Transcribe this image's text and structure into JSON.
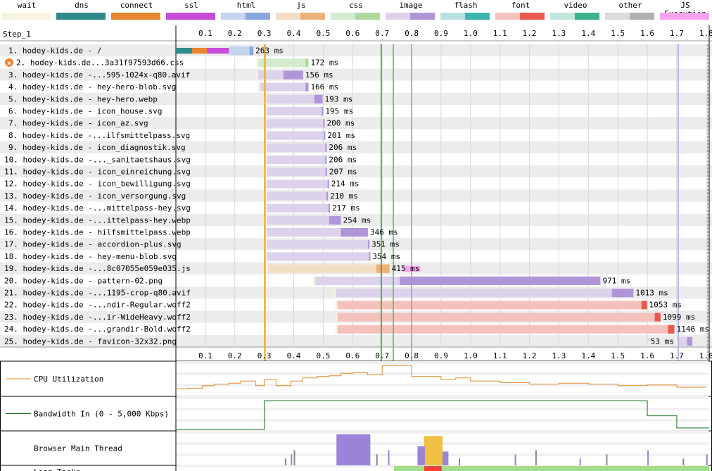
{
  "legend": [
    {
      "name": "wait",
      "c1": "#f7f4e2",
      "c2": "#f7f4e2"
    },
    {
      "name": "dns",
      "c1": "#2f8a8a",
      "c2": "#2f8a8a"
    },
    {
      "name": "connect",
      "c1": "#e9852f",
      "c2": "#e9852f"
    },
    {
      "name": "ssl",
      "c1": "#c94bd9",
      "c2": "#c94bd9"
    },
    {
      "name": "html",
      "c1": "#c4d5ef",
      "c2": "#86a7e0"
    },
    {
      "name": "js",
      "c1": "#f4dfc6",
      "c2": "#ecb277"
    },
    {
      "name": "css",
      "c1": "#d5ebcd",
      "c2": "#b0d9a0"
    },
    {
      "name": "image",
      "c1": "#ddd2ec",
      "c2": "#b096d9"
    },
    {
      "name": "flash",
      "c1": "#b9e1e1",
      "c2": "#3cb4b4"
    },
    {
      "name": "font",
      "c1": "#f4c2bd",
      "c2": "#eb5a4f"
    },
    {
      "name": "video",
      "c1": "#bfe7da",
      "c2": "#3cb28f"
    },
    {
      "name": "other",
      "c1": "#dcdcdc",
      "c2": "#b0b0b0"
    },
    {
      "name": "JS Execution",
      "c1": "#f7a3ef",
      "c2": "#f7a3ef"
    }
  ],
  "step_label": "Step_1",
  "tick_labels": [
    "0.1",
    "0.2",
    "0.3",
    "0.4",
    "0.5",
    "0.6",
    "0.7",
    "0.8",
    "0.9",
    "1.0",
    "1.1",
    "1.2",
    "1.3",
    "1.4",
    "1.5",
    "1.6",
    "1.7",
    "1.8"
  ],
  "chart_data": {
    "type": "waterfall",
    "x_unit": "seconds",
    "x_range": [
      0,
      1.81
    ],
    "requests": [
      {
        "label": "1. hodey-kids.de - /",
        "type": "html",
        "start": 0.0,
        "end": 0.263,
        "duration": "263 ms",
        "phases": {
          "dns": [
            0.0,
            0.055
          ],
          "connect": [
            0.055,
            0.105
          ],
          "ssl": [
            0.105,
            0.18
          ],
          "ttfb": [
            0.18,
            0.25
          ]
        }
      },
      {
        "label": "2. hodey-kids.de...3a31f97593d66.css",
        "type": "css",
        "start": 0.278,
        "end": 0.45,
        "duration": "172 ms",
        "warn": true,
        "ttfb": [
          0.278,
          0.44
        ]
      },
      {
        "label": "3. hodey-kids.de -...595-1024x-q80.avif",
        "type": "image",
        "start": 0.276,
        "end": 0.432,
        "duration": "156 ms",
        "ttfb": [
          0.276,
          0.365
        ]
      },
      {
        "label": "4. hodey-kids.de - hey-hero-blob.svg",
        "type": "image",
        "start": 0.284,
        "end": 0.45,
        "duration": "166 ms",
        "ttfb": [
          0.284,
          0.44
        ]
      },
      {
        "label": "5. hodey-kids.de - hey-hero.webp",
        "type": "image",
        "start": 0.305,
        "end": 0.498,
        "duration": "193 ms",
        "ttfb": [
          0.305,
          0.47
        ]
      },
      {
        "label": "6. hodey-kids.de - icon_house.svg",
        "type": "image",
        "start": 0.305,
        "end": 0.5,
        "duration": "195 ms",
        "ttfb": [
          0.305,
          0.495
        ]
      },
      {
        "label": "7. hodey-kids.de - icon_az.svg",
        "type": "image",
        "start": 0.305,
        "end": 0.505,
        "duration": "200 ms",
        "ttfb": [
          0.305,
          0.5
        ]
      },
      {
        "label": "8. hodey-kids.de -...ilfsmittelpass.svg",
        "type": "image",
        "start": 0.306,
        "end": 0.507,
        "duration": "201 ms",
        "ttfb": [
          0.306,
          0.502
        ]
      },
      {
        "label": "9. hodey-kids.de - icon_diagnostik.svg",
        "type": "image",
        "start": 0.306,
        "end": 0.512,
        "duration": "206 ms",
        "ttfb": [
          0.306,
          0.507
        ]
      },
      {
        "label": "10. hodey-kids.de -..._sanitaetshaus.svg",
        "type": "image",
        "start": 0.306,
        "end": 0.512,
        "duration": "206 ms",
        "ttfb": [
          0.306,
          0.507
        ]
      },
      {
        "label": "11. hodey-kids.de - icon_einreichung.svg",
        "type": "image",
        "start": 0.306,
        "end": 0.513,
        "duration": "207 ms",
        "ttfb": [
          0.306,
          0.508
        ]
      },
      {
        "label": "12. hodey-kids.de - icon_bewilligung.svg",
        "type": "image",
        "start": 0.306,
        "end": 0.52,
        "duration": "214 ms",
        "ttfb": [
          0.306,
          0.515
        ]
      },
      {
        "label": "13. hodey-kids.de - icon_versorgung.svg",
        "type": "image",
        "start": 0.306,
        "end": 0.516,
        "duration": "210 ms",
        "ttfb": [
          0.306,
          0.511
        ]
      },
      {
        "label": "14. hodey-kids.de -...mittelpass-hey.svg",
        "type": "image",
        "start": 0.306,
        "end": 0.523,
        "duration": "217 ms",
        "ttfb": [
          0.306,
          0.518
        ]
      },
      {
        "label": "15. hodey-kids.de -...ittelpass-hey.webp",
        "type": "image",
        "start": 0.306,
        "end": 0.56,
        "duration": "254 ms",
        "ttfb": [
          0.306,
          0.52
        ]
      },
      {
        "label": "16. hodey-kids.de - hilfsmittelpass.webp",
        "type": "image",
        "start": 0.306,
        "end": 0.652,
        "duration": "346 ms",
        "ttfb": [
          0.306,
          0.56
        ]
      },
      {
        "label": "17. hodey-kids.de - accordion-plus.svg",
        "type": "image",
        "start": 0.306,
        "end": 0.657,
        "duration": "351 ms",
        "ttfb": [
          0.306,
          0.652
        ]
      },
      {
        "label": "18. hodey-kids.de - hey-menu-blob.svg",
        "type": "image",
        "start": 0.306,
        "end": 0.66,
        "duration": "354 ms",
        "ttfb": [
          0.306,
          0.655
        ]
      },
      {
        "label": "19. hodey-kids.de -...8c07055e059e035.js",
        "type": "js",
        "start": 0.31,
        "end": 0.725,
        "duration": "415 ms",
        "ttfb": [
          0.31,
          0.68
        ],
        "js_exec": [
          0.77,
          0.83
        ]
      },
      {
        "label": "20. hodey-kids.de - pattern-02.png",
        "type": "image",
        "start": 0.47,
        "end": 1.441,
        "duration": "971 ms",
        "ttfb": [
          0.47,
          0.76
        ]
      },
      {
        "label": "21. hodey-kids.de -...1195-crop-q80.avif",
        "type": "image",
        "start": 0.54,
        "end": 1.553,
        "duration": "1013 ms",
        "ttfb": [
          0.54,
          1.48
        ]
      },
      {
        "label": "22. hodey-kids.de -...ndir-Regular.woff2",
        "type": "font",
        "start": 0.546,
        "end": 1.599,
        "duration": "1053 ms",
        "ttfb": [
          0.546,
          1.58
        ]
      },
      {
        "label": "23. hodey-kids.de -...ir-WideHeavy.woff2",
        "type": "font",
        "start": 0.546,
        "end": 1.645,
        "duration": "1099 ms",
        "ttfb": [
          0.546,
          1.625
        ]
      },
      {
        "label": "24. hodey-kids.de -...grandir-Bold.woff2",
        "type": "font",
        "start": 0.546,
        "end": 1.692,
        "duration": "1146 ms",
        "ttfb": [
          0.546,
          1.67
        ]
      },
      {
        "label": "25. hodey-kids.de - favicon-32x32.png",
        "type": "image",
        "start": 1.7,
        "end": 1.753,
        "duration": "53 ms",
        "ttfb": [
          1.7,
          1.735
        ],
        "label_left": true
      }
    ],
    "markers": [
      {
        "name": "start-render",
        "time": 0.302,
        "color": "#f0b030"
      },
      {
        "name": "dom-interactive",
        "time": 0.697,
        "color": "#29a829"
      },
      {
        "name": "dom-content-loaded",
        "time": 0.738,
        "color": "#44cc44"
      },
      {
        "name": "on-load",
        "time": 0.8,
        "color": "#c080e0"
      },
      {
        "name": "lcp",
        "time": 1.705,
        "color": "#aaaaee"
      },
      {
        "name": "end",
        "time": 1.805,
        "color": "#e06010"
      }
    ],
    "panels": {
      "cpu": {
        "label": "CPU Utilization",
        "color": "#e08a2a",
        "points": [
          [
            0,
            0.2
          ],
          [
            0.04,
            0.22
          ],
          [
            0.09,
            0.3
          ],
          [
            0.13,
            0.35
          ],
          [
            0.18,
            0.38
          ],
          [
            0.22,
            0.45
          ],
          [
            0.27,
            0.3
          ],
          [
            0.3,
            0.5
          ],
          [
            0.34,
            0.3
          ],
          [
            0.39,
            0.45
          ],
          [
            0.43,
            0.55
          ],
          [
            0.48,
            0.6
          ],
          [
            0.52,
            0.62
          ],
          [
            0.56,
            0.7
          ],
          [
            0.6,
            0.72
          ],
          [
            0.65,
            0.65
          ],
          [
            0.7,
            0.95
          ],
          [
            0.8,
            0.6
          ],
          [
            0.9,
            0.5
          ],
          [
            0.95,
            0.55
          ],
          [
            1.0,
            0.45
          ],
          [
            1.1,
            0.4
          ],
          [
            1.2,
            0.35
          ],
          [
            1.3,
            0.38
          ],
          [
            1.4,
            0.35
          ],
          [
            1.5,
            0.3
          ],
          [
            1.6,
            0.32
          ],
          [
            1.7,
            0.25
          ],
          [
            1.8,
            0.25
          ]
        ]
      },
      "bandwidth": {
        "label": "Bandwidth In (0 - 5,000 Kbps)",
        "color": "#1a6e1a",
        "points": [
          [
            0,
            0.0
          ],
          [
            0.3,
            0.0
          ],
          [
            0.3,
            0.95
          ],
          [
            1.6,
            0.95
          ],
          [
            1.6,
            0.45
          ],
          [
            1.7,
            0.45
          ],
          [
            1.7,
            0.05
          ],
          [
            1.81,
            0.05
          ]
        ]
      },
      "main_thread": {
        "label": "Browser Main Thread"
      },
      "long_tasks": {
        "label": "Long Tasks",
        "green_from": 0.74,
        "red": [
          0.843,
          0.902
        ]
      }
    }
  }
}
